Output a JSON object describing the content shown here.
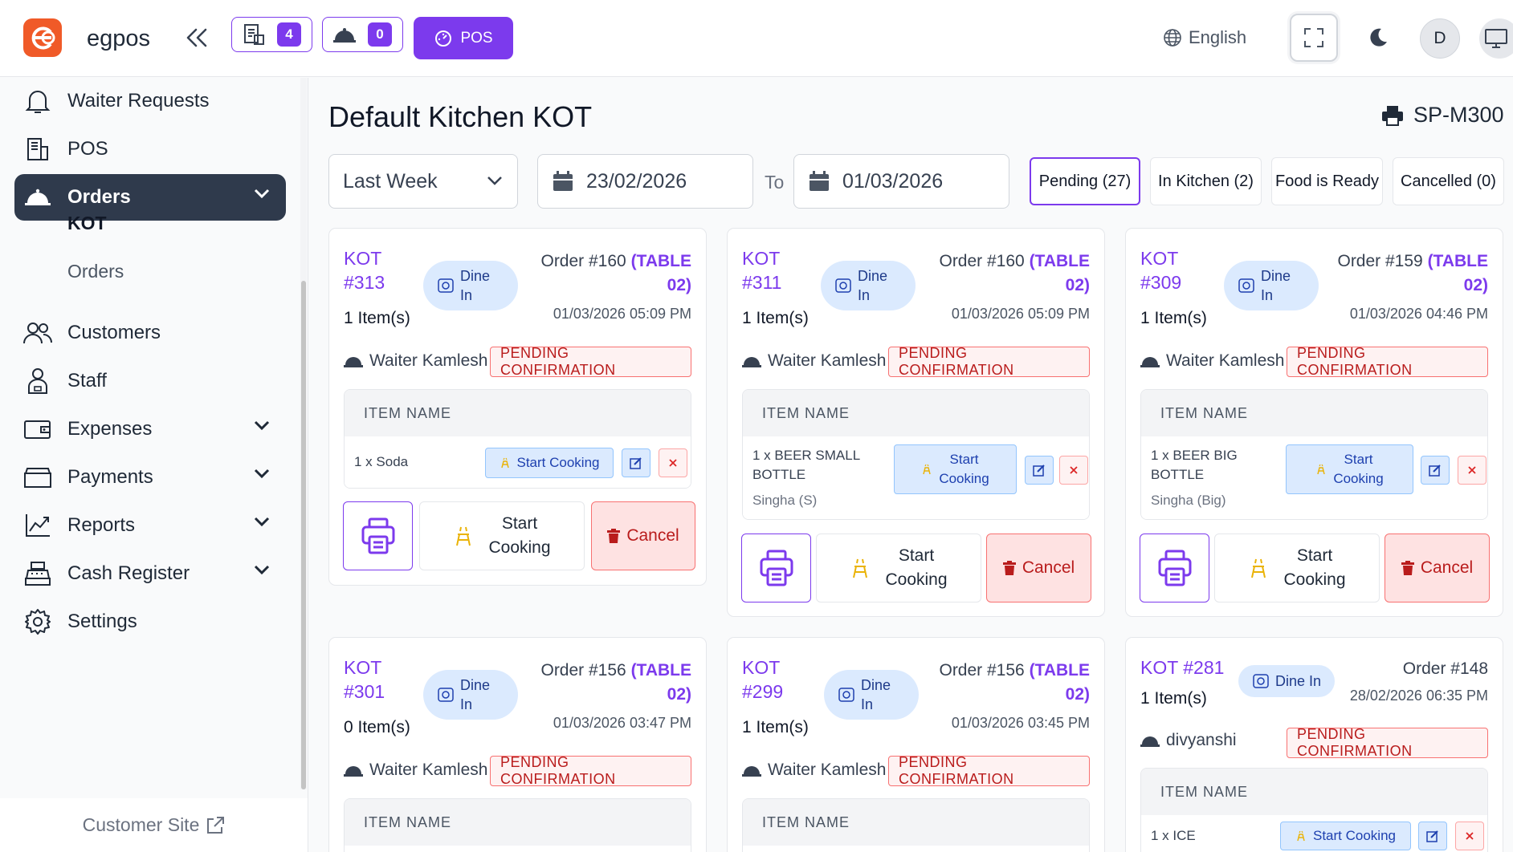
{
  "app": {
    "brand": "egpos",
    "logo_letter": "e"
  },
  "header": {
    "badge1_count": "4",
    "badge2_count": "0",
    "pos_label": "POS",
    "language": "English",
    "avatar_letter": "D"
  },
  "sidebar": {
    "items": [
      {
        "label": "Waiter Requests"
      },
      {
        "label": "POS"
      },
      {
        "label": "Orders"
      },
      {
        "label": "Customers"
      },
      {
        "label": "Staff"
      },
      {
        "label": "Expenses"
      },
      {
        "label": "Payments"
      },
      {
        "label": "Reports"
      },
      {
        "label": "Cash Register"
      },
      {
        "label": "Settings"
      }
    ],
    "sub_items": [
      {
        "label": "KOT"
      },
      {
        "label": "Orders"
      }
    ],
    "customer_site": "Customer Site"
  },
  "page": {
    "title": "Default Kitchen KOT",
    "printer": "SP-M300"
  },
  "filters": {
    "range": "Last Week",
    "from": "23/02/2026",
    "to_label": "To",
    "to": "01/03/2026"
  },
  "tabs": [
    {
      "label": "Pending (27)"
    },
    {
      "label": "In Kitchen (2)"
    },
    {
      "label": "Food is Ready"
    },
    {
      "label": "Cancelled (0)"
    }
  ],
  "common": {
    "dine_line1": "Dine",
    "dine_line2": "In",
    "dine_in": "Dine In",
    "pending": "PENDING CONFIRMATION",
    "item_name": "ITEM NAME",
    "start_cooking": "Start Cooking",
    "start": "Start",
    "cooking": "Cooking",
    "cancel": "Cancel"
  },
  "cards": [
    {
      "kot": "KOT",
      "kot_num": "#313",
      "items": "1 Item(s)",
      "order": "Order #160",
      "table1": "(TABLE",
      "table2": "02)",
      "time": "01/03/2026 05:09 PM",
      "waiter": "Waiter Kamlesh",
      "row_name": "1 x Soda"
    },
    {
      "kot": "KOT",
      "kot_num": "#311",
      "items": "1 Item(s)",
      "order": "Order #160",
      "table1": "(TABLE",
      "table2": "02)",
      "time": "01/03/2026 05:09 PM",
      "waiter": "Waiter Kamlesh",
      "row_name1": "1 x BEER SMALL",
      "row_name2": "BOTTLE",
      "row_var": "Singha (S)"
    },
    {
      "kot": "KOT",
      "kot_num": "#309",
      "items": "1 Item(s)",
      "order": "Order #159",
      "table1": "(TABLE",
      "table2": "02)",
      "time": "01/03/2026 04:46 PM",
      "waiter": "Waiter Kamlesh",
      "row_name1": "1 x BEER BIG",
      "row_name2": "BOTTLE",
      "row_var": "Singha (Big)"
    },
    {
      "kot": "KOT",
      "kot_num": "#301",
      "items": "0 Item(s)",
      "order": "Order #156",
      "table1": "(TABLE",
      "table2": "02)",
      "time": "01/03/2026 03:47 PM",
      "waiter": "Waiter Kamlesh"
    },
    {
      "kot": "KOT",
      "kot_num": "#299",
      "items": "1 Item(s)",
      "order": "Order #156",
      "table1": "(TABLE",
      "table2": "02)",
      "time": "01/03/2026 03:45 PM",
      "waiter": "Waiter Kamlesh"
    },
    {
      "kot": "KOT #281",
      "items": "1 Item(s)",
      "order": "Order #148",
      "time": "28/02/2026 06:35 PM",
      "waiter": "divyanshi",
      "row_name": "1 x ICE"
    }
  ],
  "colors": {
    "accent": "#7c3aed",
    "sidebar_active": "#2f3a4c",
    "danger": "#b91c1c",
    "info": "#dbeafe",
    "logo": "#f05a28"
  }
}
